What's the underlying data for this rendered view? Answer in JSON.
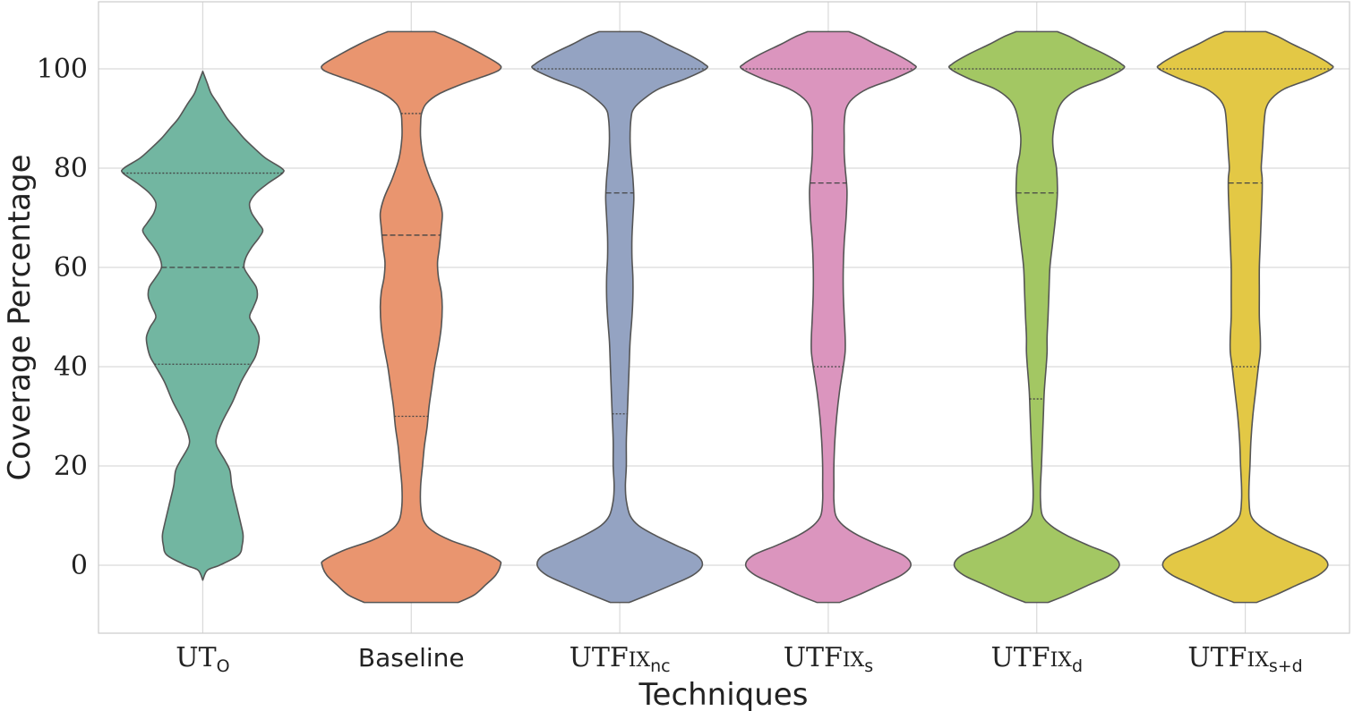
{
  "chart_data": {
    "type": "violin",
    "xlabel": "Techniques",
    "ylabel": "Coverage Percentage",
    "ylim": [
      -13,
      113
    ],
    "yticks": [
      0,
      20,
      40,
      60,
      80,
      100
    ],
    "ytick_labels": [
      "0",
      "20",
      "40",
      "60",
      "80",
      "100"
    ],
    "grid": true,
    "categories": [
      {
        "main": "UT",
        "sc": "",
        "sub": "O",
        "style": "serif"
      },
      {
        "main": "Baseline",
        "sc": "",
        "sub": "",
        "style": "sans"
      },
      {
        "main": "UTF",
        "sc": "IX",
        "sub": "nc",
        "style": "serif"
      },
      {
        "main": "UTF",
        "sc": "IX",
        "sub": "s",
        "style": "serif"
      },
      {
        "main": "UTF",
        "sc": "IX",
        "sub": "d",
        "style": "serif"
      },
      {
        "main": "UTF",
        "sc": "IX",
        "sub": "s+d",
        "style": "serif"
      }
    ],
    "series": [
      {
        "color": "#72b6a1",
        "range": [
          -3,
          99.5
        ],
        "quartiles": [
          40.5,
          60,
          79
        ],
        "profile": [
          [
            -3,
            0
          ],
          [
            -1,
            0.05
          ],
          [
            0,
            0.18
          ],
          [
            2,
            0.38
          ],
          [
            4,
            0.42
          ],
          [
            6,
            0.43
          ],
          [
            8,
            0.41
          ],
          [
            12,
            0.36
          ],
          [
            16,
            0.31
          ],
          [
            19,
            0.29
          ],
          [
            21,
            0.24
          ],
          [
            24,
            0.15
          ],
          [
            26,
            0.15
          ],
          [
            29,
            0.21
          ],
          [
            33,
            0.32
          ],
          [
            37,
            0.41
          ],
          [
            40,
            0.5
          ],
          [
            42,
            0.56
          ],
          [
            44,
            0.59
          ],
          [
            46,
            0.6
          ],
          [
            48,
            0.56
          ],
          [
            50,
            0.5
          ],
          [
            52,
            0.54
          ],
          [
            54,
            0.58
          ],
          [
            56,
            0.57
          ],
          [
            58,
            0.5
          ],
          [
            60,
            0.44
          ],
          [
            62,
            0.46
          ],
          [
            64,
            0.52
          ],
          [
            66,
            0.6
          ],
          [
            67.5,
            0.64
          ],
          [
            69,
            0.59
          ],
          [
            71,
            0.52
          ],
          [
            73,
            0.5
          ],
          [
            75,
            0.57
          ],
          [
            77,
            0.7
          ],
          [
            79,
            0.85
          ],
          [
            80,
            0.84
          ],
          [
            82,
            0.67
          ],
          [
            84,
            0.55
          ],
          [
            86,
            0.44
          ],
          [
            88,
            0.35
          ],
          [
            90,
            0.26
          ],
          [
            93,
            0.16
          ],
          [
            95,
            0.09
          ],
          [
            97,
            0.05
          ],
          [
            98.5,
            0.02
          ],
          [
            99.5,
            0
          ]
        ]
      },
      {
        "color": "#e9956f",
        "range": [
          -7.5,
          107.5
        ],
        "quartiles": [
          30,
          66.5,
          91
        ],
        "profile": [
          [
            -7.5,
            0.5
          ],
          [
            -6,
            0.67
          ],
          [
            -4,
            0.79
          ],
          [
            -2,
            0.9
          ],
          [
            0,
            0.95
          ],
          [
            1,
            0.93
          ],
          [
            3,
            0.72
          ],
          [
            5,
            0.42
          ],
          [
            7,
            0.22
          ],
          [
            9,
            0.13
          ],
          [
            12,
            0.1
          ],
          [
            16,
            0.1
          ],
          [
            20,
            0.12
          ],
          [
            24,
            0.14
          ],
          [
            28,
            0.17
          ],
          [
            32,
            0.19
          ],
          [
            36,
            0.22
          ],
          [
            40,
            0.25
          ],
          [
            44,
            0.29
          ],
          [
            48,
            0.32
          ],
          [
            52,
            0.33
          ],
          [
            55,
            0.32
          ],
          [
            58,
            0.29
          ],
          [
            61,
            0.28
          ],
          [
            64,
            0.3
          ],
          [
            68,
            0.32
          ],
          [
            71,
            0.33
          ],
          [
            74,
            0.29
          ],
          [
            78,
            0.2
          ],
          [
            82,
            0.13
          ],
          [
            86,
            0.1
          ],
          [
            89,
            0.1
          ],
          [
            91,
            0.11
          ],
          [
            93,
            0.16
          ],
          [
            95,
            0.3
          ],
          [
            97,
            0.55
          ],
          [
            99,
            0.85
          ],
          [
            100,
            0.95
          ],
          [
            101,
            0.93
          ],
          [
            103,
            0.75
          ],
          [
            105,
            0.55
          ],
          [
            106.5,
            0.38
          ],
          [
            107.5,
            0.25
          ]
        ]
      },
      {
        "color": "#94a3c2",
        "range": [
          -7.5,
          107.5
        ],
        "quartiles": [
          30.5,
          75,
          100
        ],
        "profile": [
          [
            -7.5,
            0.1
          ],
          [
            -6,
            0.3
          ],
          [
            -4,
            0.55
          ],
          [
            -2,
            0.78
          ],
          [
            0,
            0.88
          ],
          [
            2,
            0.82
          ],
          [
            4,
            0.6
          ],
          [
            6,
            0.38
          ],
          [
            8,
            0.2
          ],
          [
            10,
            0.11
          ],
          [
            13,
            0.07
          ],
          [
            16,
            0.06
          ],
          [
            20,
            0.07
          ],
          [
            25,
            0.07
          ],
          [
            30,
            0.08
          ],
          [
            35,
            0.09
          ],
          [
            40,
            0.1
          ],
          [
            45,
            0.11
          ],
          [
            50,
            0.13
          ],
          [
            54,
            0.14
          ],
          [
            58,
            0.14
          ],
          [
            62,
            0.13
          ],
          [
            66,
            0.13
          ],
          [
            70,
            0.14
          ],
          [
            74,
            0.15
          ],
          [
            78,
            0.14
          ],
          [
            82,
            0.12
          ],
          [
            86,
            0.11
          ],
          [
            90,
            0.12
          ],
          [
            92,
            0.15
          ],
          [
            94,
            0.26
          ],
          [
            96,
            0.42
          ],
          [
            98,
            0.7
          ],
          [
            100,
            0.92
          ],
          [
            101,
            0.9
          ],
          [
            103,
            0.72
          ],
          [
            105,
            0.5
          ],
          [
            106.5,
            0.35
          ],
          [
            107.5,
            0.22
          ]
        ]
      },
      {
        "color": "#db95be",
        "range": [
          -7.5,
          107.5
        ],
        "quartiles": [
          40,
          77,
          100
        ],
        "profile": [
          [
            -7.5,
            0.12
          ],
          [
            -6,
            0.32
          ],
          [
            -4,
            0.55
          ],
          [
            -2,
            0.78
          ],
          [
            0,
            0.88
          ],
          [
            2,
            0.8
          ],
          [
            4,
            0.55
          ],
          [
            6,
            0.32
          ],
          [
            8,
            0.16
          ],
          [
            10,
            0.08
          ],
          [
            13,
            0.06
          ],
          [
            16,
            0.06
          ],
          [
            20,
            0.06
          ],
          [
            25,
            0.07
          ],
          [
            30,
            0.09
          ],
          [
            35,
            0.12
          ],
          [
            40,
            0.16
          ],
          [
            43,
            0.18
          ],
          [
            46,
            0.18
          ],
          [
            50,
            0.17
          ],
          [
            55,
            0.16
          ],
          [
            60,
            0.16
          ],
          [
            65,
            0.17
          ],
          [
            70,
            0.19
          ],
          [
            75,
            0.2
          ],
          [
            78,
            0.19
          ],
          [
            80,
            0.18
          ],
          [
            83,
            0.17
          ],
          [
            86,
            0.17
          ],
          [
            89,
            0.17
          ],
          [
            92,
            0.19
          ],
          [
            94,
            0.26
          ],
          [
            96,
            0.42
          ],
          [
            98,
            0.7
          ],
          [
            100,
            0.92
          ],
          [
            101,
            0.9
          ],
          [
            103,
            0.72
          ],
          [
            105,
            0.5
          ],
          [
            106.5,
            0.35
          ],
          [
            107.5,
            0.22
          ]
        ]
      },
      {
        "color": "#a3c763",
        "range": [
          -7.5,
          107.5
        ],
        "quartiles": [
          33.5,
          75,
          100
        ],
        "profile": [
          [
            -7.5,
            0.12
          ],
          [
            -6,
            0.32
          ],
          [
            -4,
            0.55
          ],
          [
            -2,
            0.78
          ],
          [
            0,
            0.88
          ],
          [
            2,
            0.8
          ],
          [
            4,
            0.55
          ],
          [
            6,
            0.32
          ],
          [
            8,
            0.15
          ],
          [
            10,
            0.06
          ],
          [
            13,
            0.04
          ],
          [
            16,
            0.04
          ],
          [
            20,
            0.05
          ],
          [
            25,
            0.06
          ],
          [
            30,
            0.07
          ],
          [
            35,
            0.08
          ],
          [
            40,
            0.1
          ],
          [
            43,
            0.11
          ],
          [
            46,
            0.11
          ],
          [
            50,
            0.12
          ],
          [
            55,
            0.13
          ],
          [
            60,
            0.14
          ],
          [
            65,
            0.17
          ],
          [
            70,
            0.2
          ],
          [
            75,
            0.22
          ],
          [
            80,
            0.21
          ],
          [
            83,
            0.18
          ],
          [
            86,
            0.17
          ],
          [
            89,
            0.19
          ],
          [
            92,
            0.23
          ],
          [
            94,
            0.3
          ],
          [
            96,
            0.45
          ],
          [
            98,
            0.72
          ],
          [
            100,
            0.92
          ],
          [
            101,
            0.9
          ],
          [
            103,
            0.72
          ],
          [
            105,
            0.5
          ],
          [
            106.5,
            0.35
          ],
          [
            107.5,
            0.22
          ]
        ]
      },
      {
        "color": "#e3c845",
        "range": [
          -7.5,
          107.5
        ],
        "quartiles": [
          40,
          77,
          100
        ],
        "profile": [
          [
            -7.5,
            0.12
          ],
          [
            -6,
            0.32
          ],
          [
            -4,
            0.55
          ],
          [
            -2,
            0.78
          ],
          [
            0,
            0.88
          ],
          [
            2,
            0.8
          ],
          [
            4,
            0.55
          ],
          [
            6,
            0.32
          ],
          [
            8,
            0.15
          ],
          [
            10,
            0.06
          ],
          [
            13,
            0.04
          ],
          [
            16,
            0.04
          ],
          [
            20,
            0.05
          ],
          [
            25,
            0.06
          ],
          [
            30,
            0.08
          ],
          [
            35,
            0.11
          ],
          [
            40,
            0.14
          ],
          [
            43,
            0.16
          ],
          [
            46,
            0.16
          ],
          [
            50,
            0.15
          ],
          [
            55,
            0.15
          ],
          [
            60,
            0.15
          ],
          [
            65,
            0.16
          ],
          [
            70,
            0.17
          ],
          [
            75,
            0.18
          ],
          [
            78,
            0.18
          ],
          [
            80,
            0.17
          ],
          [
            83,
            0.18
          ],
          [
            86,
            0.19
          ],
          [
            89,
            0.2
          ],
          [
            92,
            0.22
          ],
          [
            94,
            0.28
          ],
          [
            96,
            0.42
          ],
          [
            98,
            0.7
          ],
          [
            100,
            0.92
          ],
          [
            101,
            0.9
          ],
          [
            103,
            0.72
          ],
          [
            105,
            0.5
          ],
          [
            106.5,
            0.35
          ],
          [
            107.5,
            0.22
          ]
        ]
      }
    ]
  }
}
